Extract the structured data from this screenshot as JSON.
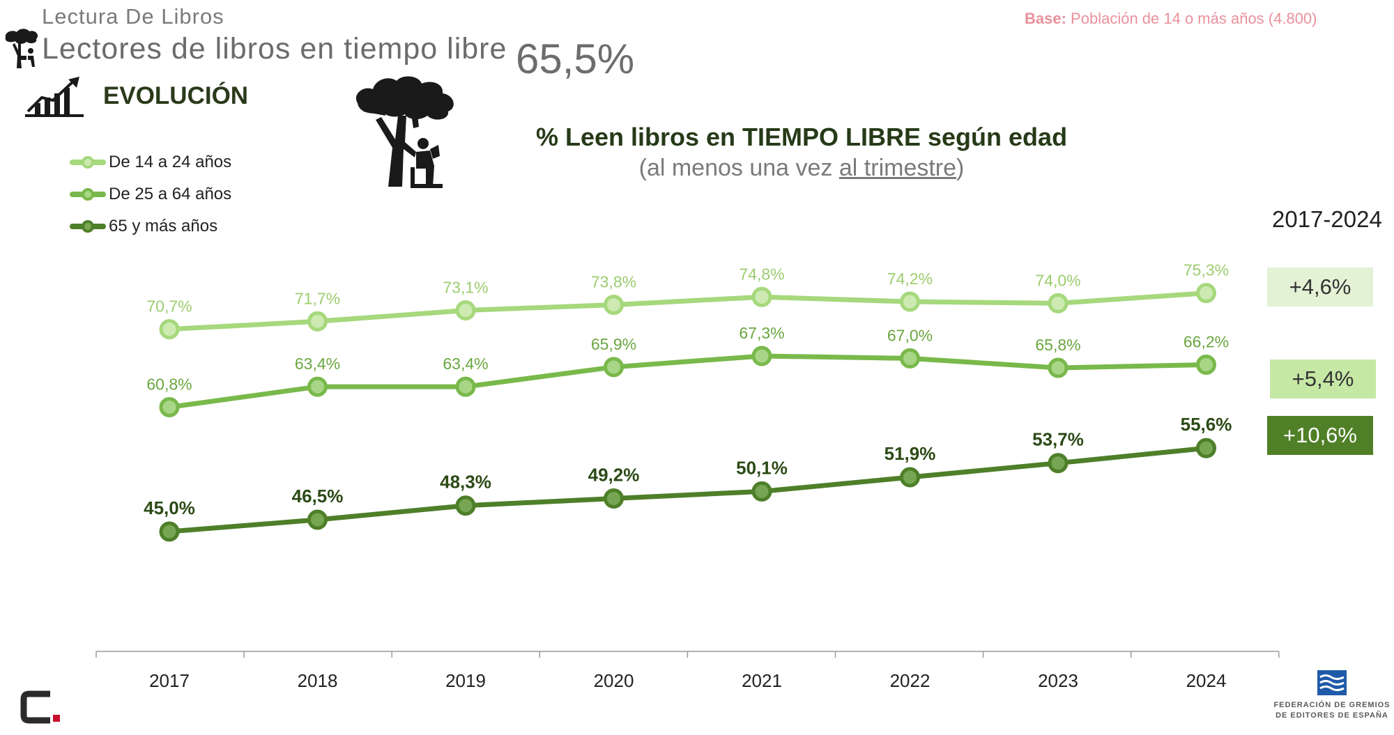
{
  "header": {
    "section": "Lectura De Libros",
    "title": "Lectores de libros en tiempo libre",
    "overall_value": "65,5%",
    "base_label": "Base:",
    "base_text": "Población de 14 o más años (4.800)",
    "evolution_label": "EVOLUCIÓN"
  },
  "chart_data": {
    "type": "line",
    "title": "% Leen libros en TIEMPO LIBRE según edad",
    "subtitle_prefix": "(al menos una vez ",
    "subtitle_underlined": "al trimestre",
    "subtitle_suffix": ")",
    "categories": [
      "2017",
      "2018",
      "2019",
      "2020",
      "2021",
      "2022",
      "2023",
      "2024"
    ],
    "ylim": [
      40,
      80
    ],
    "series": [
      {
        "name": "De 14 a 24 años",
        "values": [
          70.7,
          71.7,
          73.1,
          73.8,
          74.8,
          74.2,
          74.0,
          75.3
        ],
        "labels": [
          "70,7%",
          "71,7%",
          "73,1%",
          "73,8%",
          "74,8%",
          "74,2%",
          "74,0%",
          "75,3%"
        ],
        "color": "#a6d87c",
        "label_color": "#9ccc6e",
        "bold": false
      },
      {
        "name": "De 25 a 64 años",
        "values": [
          60.8,
          63.4,
          63.4,
          65.9,
          67.3,
          67.0,
          65.8,
          66.2
        ],
        "labels": [
          "60,8%",
          "63,4%",
          "63,4%",
          "65,9%",
          "67,3%",
          "67,0%",
          "65,8%",
          "66,2%"
        ],
        "color": "#79b94b",
        "label_color": "#6aa63f",
        "bold": false
      },
      {
        "name": "65 y más años",
        "values": [
          45.0,
          46.5,
          48.3,
          49.2,
          50.1,
          51.9,
          53.7,
          55.6
        ],
        "labels": [
          "45,0%",
          "46,5%",
          "48,3%",
          "49,2%",
          "50,1%",
          "51,9%",
          "53,7%",
          "55,6%"
        ],
        "color": "#4e7f29",
        "label_color": "#2c4a16",
        "bold": true
      }
    ]
  },
  "changes": {
    "period": "2017-2024",
    "items": [
      {
        "value": "+4,6%",
        "bg": "#e3f2d5",
        "fg": "#333333"
      },
      {
        "value": "+5,4%",
        "bg": "#c5e8a5",
        "fg": "#333333"
      },
      {
        "value": "+10,6%",
        "bg": "#4f7f26",
        "fg": "#ffffff"
      }
    ]
  },
  "footer": {
    "org_line1": "FEDERACIÓN DE GREMIOS",
    "org_line2": "DE EDITORES DE ESPAÑA"
  },
  "colors": {
    "light": "#a6d87c",
    "mid": "#79b94b",
    "dark": "#4e7f29",
    "base_text": "#e8919a",
    "logo_blue": "#1f5aa8",
    "logo_red": "#c8102e"
  }
}
